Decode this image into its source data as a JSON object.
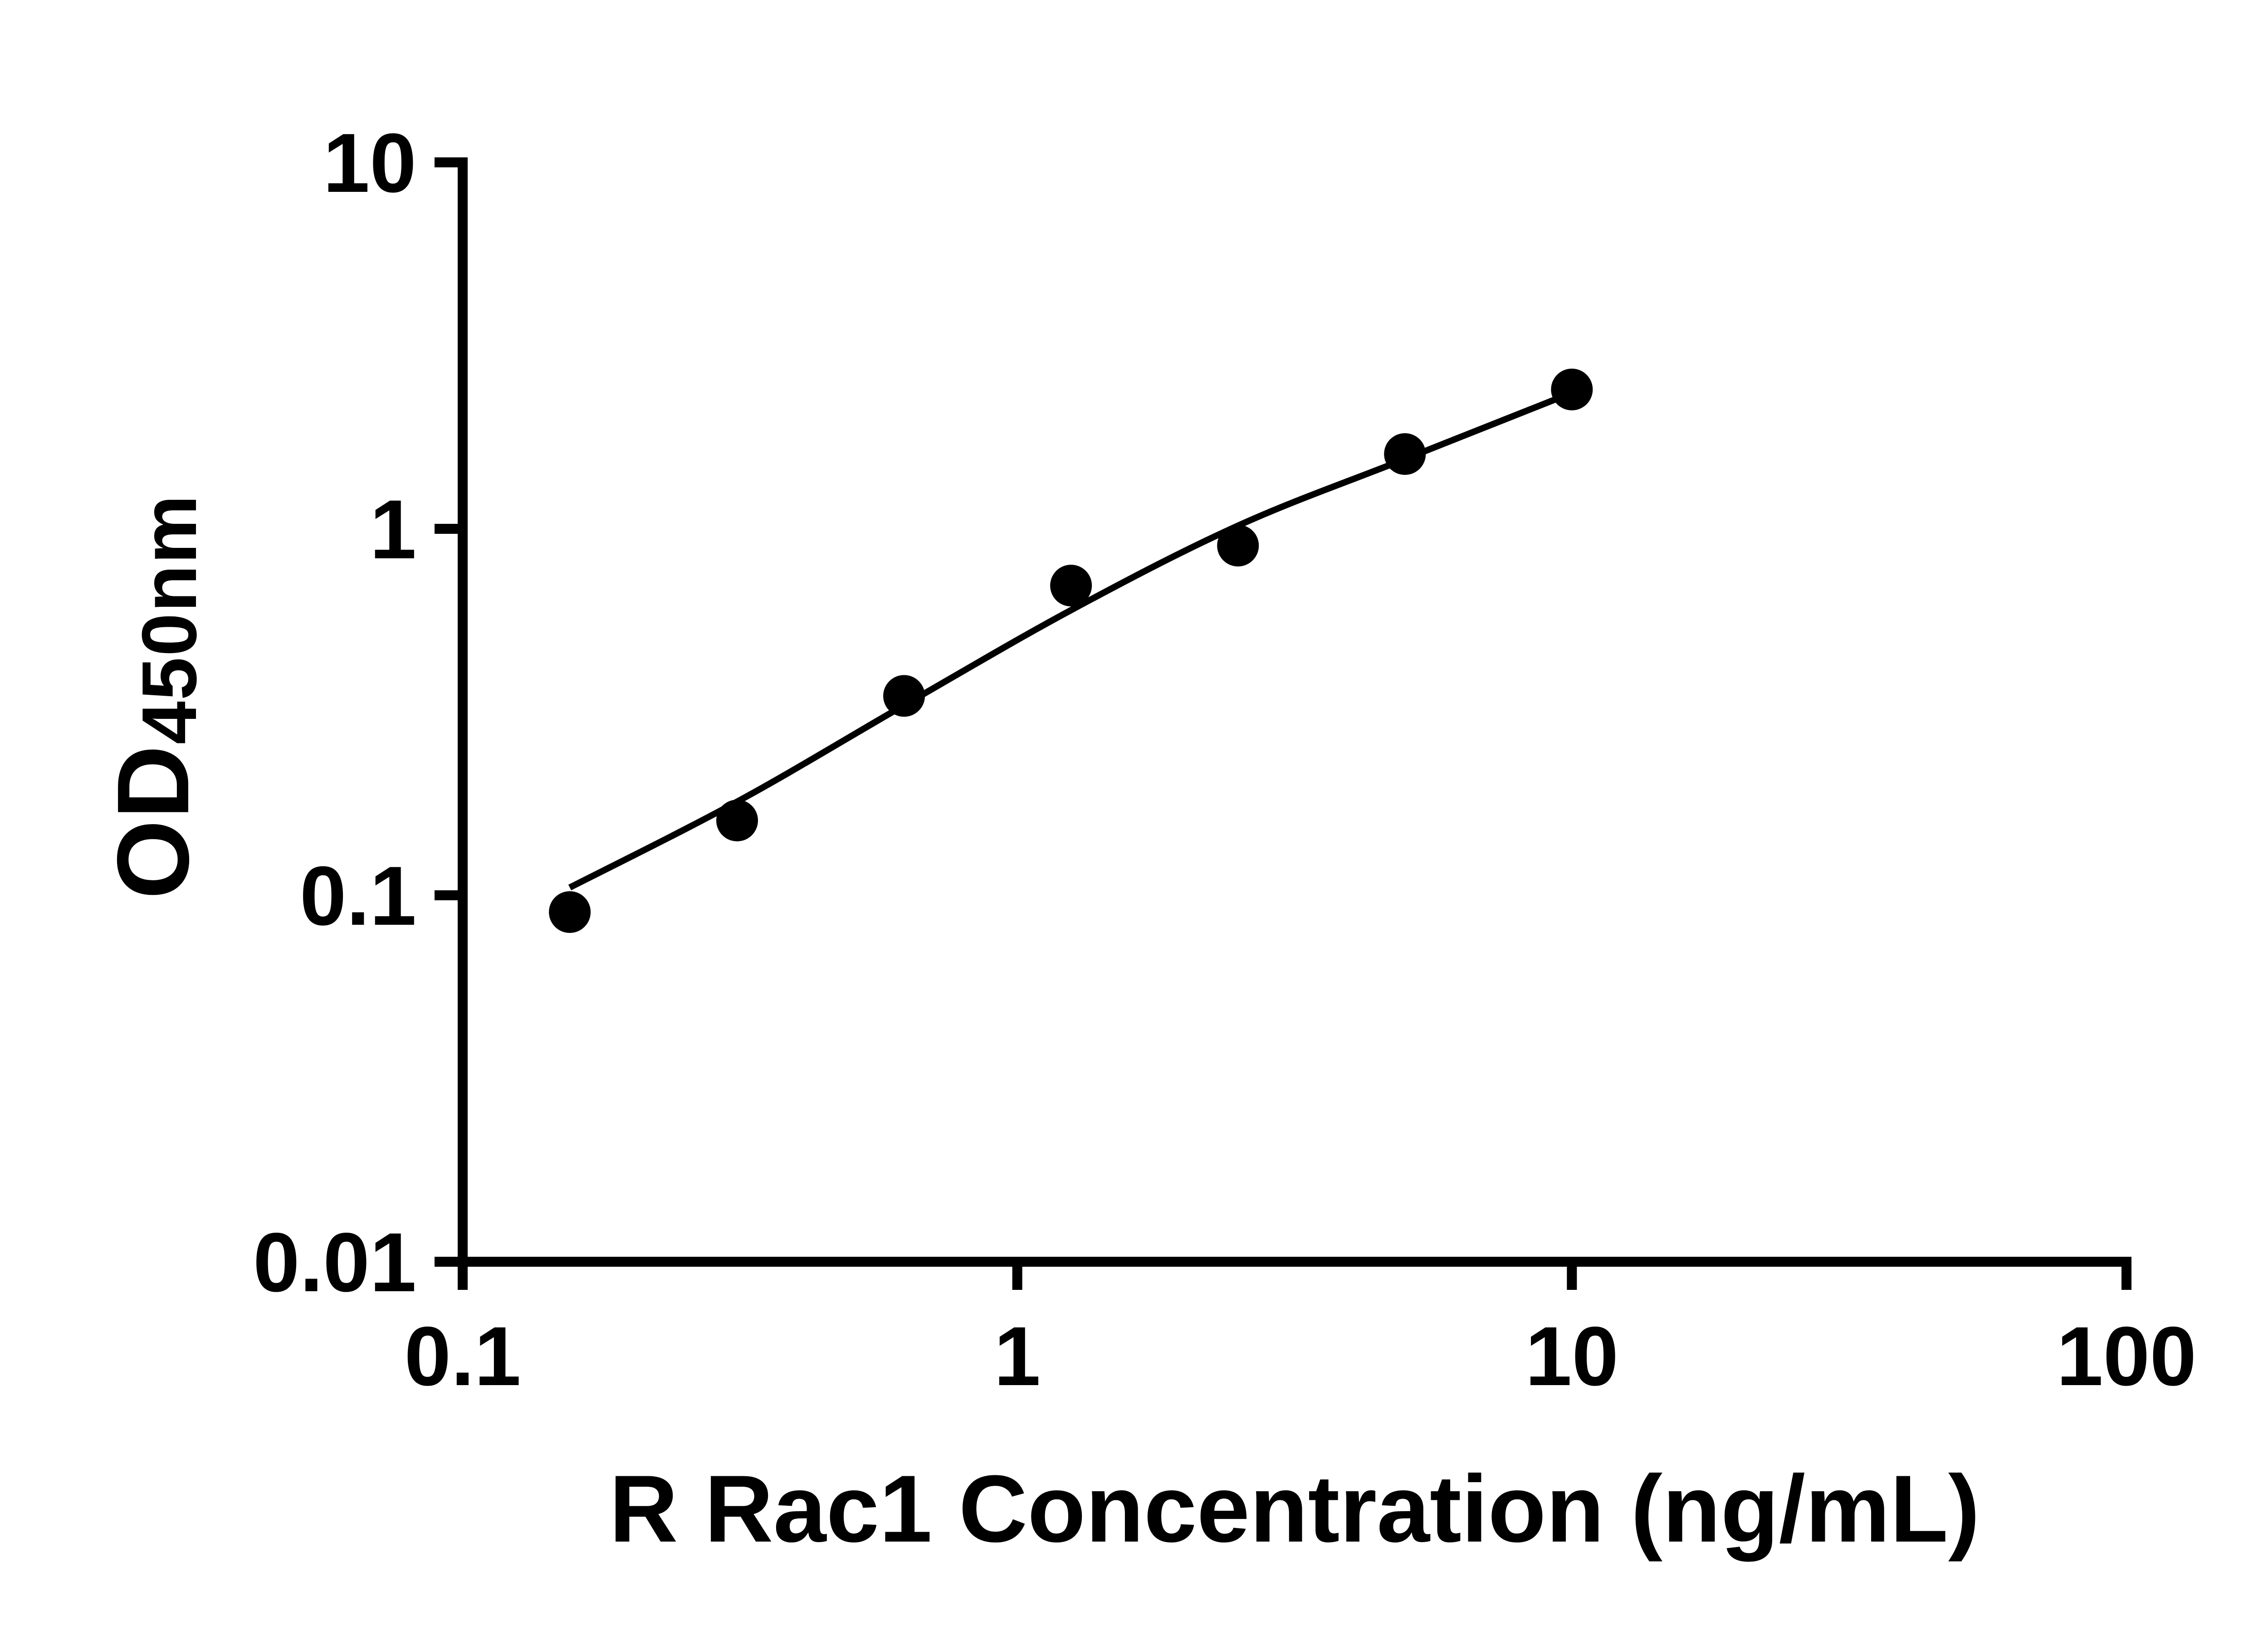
{
  "chart_data": {
    "type": "scatter",
    "title": "",
    "xlabel": "R Rac1 Concentration (ng/mL)",
    "ylabel_main": "OD",
    "ylabel_sub": "450nm",
    "x_scale": "log",
    "y_scale": "log",
    "xlim": [
      0.1,
      100
    ],
    "ylim": [
      0.01,
      10
    ],
    "grid": false,
    "legend": "none",
    "background_color": "#ffffff",
    "axis_color": "#000000",
    "marker_color": "#000000",
    "line_color": "#000000",
    "x_ticks": [
      {
        "value": 0.1,
        "label": "0.1"
      },
      {
        "value": 1,
        "label": "1"
      },
      {
        "value": 10,
        "label": "10"
      },
      {
        "value": 100,
        "label": "100"
      }
    ],
    "y_ticks": [
      {
        "value": 0.01,
        "label": "0.01"
      },
      {
        "value": 0.1,
        "label": "0.1"
      },
      {
        "value": 1,
        "label": "1"
      },
      {
        "value": 10,
        "label": "10"
      }
    ],
    "points": [
      {
        "x": 0.156,
        "y": 0.09
      },
      {
        "x": 0.3125,
        "y": 0.16
      },
      {
        "x": 0.625,
        "y": 0.35
      },
      {
        "x": 1.25,
        "y": 0.7
      },
      {
        "x": 2.5,
        "y": 0.9
      },
      {
        "x": 5,
        "y": 1.6
      },
      {
        "x": 10,
        "y": 2.4
      }
    ],
    "fit_curve": [
      {
        "x": 0.156,
        "y": 0.105
      },
      {
        "x": 0.3125,
        "y": 0.18
      },
      {
        "x": 0.625,
        "y": 0.33
      },
      {
        "x": 1.25,
        "y": 0.6
      },
      {
        "x": 2.5,
        "y": 1.02
      },
      {
        "x": 5,
        "y": 1.55
      },
      {
        "x": 10,
        "y": 2.35
      }
    ]
  }
}
